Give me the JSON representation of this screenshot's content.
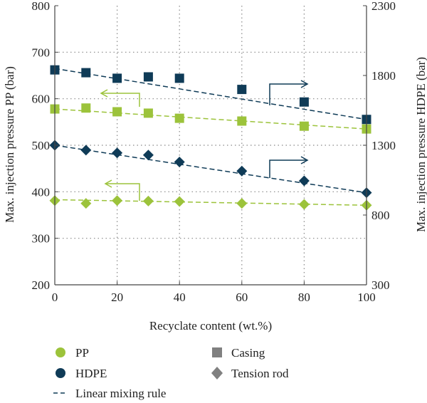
{
  "chart_data": {
    "type": "scatter",
    "x_label": "Recyclate content (wt.%)",
    "y_left_label": "Max. injection pressure PP (bar)",
    "y_right_label": "Max. injection pressure HDPE (bar)",
    "x_range": [
      0,
      100
    ],
    "y_left_range": [
      200,
      800
    ],
    "y_right_range": [
      300,
      2300
    ],
    "x_ticks": [
      0,
      20,
      40,
      60,
      80,
      100
    ],
    "y_left_ticks": [
      200,
      300,
      400,
      500,
      600,
      700,
      800
    ],
    "y_right_ticks": [
      300,
      800,
      1300,
      1800,
      2300
    ],
    "grid": "dotted",
    "colors": {
      "PP": "#9cc33b",
      "HDPE": "#0f3b57",
      "axis": "#444444",
      "grid": "#888888"
    },
    "series": [
      {
        "name": "PP",
        "part": "Casing",
        "axis": "left",
        "marker": "square",
        "x": [
          0,
          10,
          20,
          30,
          40,
          60,
          80,
          100
        ],
        "y": [
          578,
          580,
          572,
          569,
          558,
          552,
          541,
          535
        ],
        "fit": [
          578,
          535
        ]
      },
      {
        "name": "PP",
        "part": "Tension rod",
        "axis": "left",
        "marker": "diamond",
        "x": [
          0,
          10,
          20,
          30,
          40,
          60,
          80,
          100
        ],
        "y": [
          381,
          375,
          381,
          380,
          379,
          375,
          373,
          371
        ],
        "fit": [
          383,
          371
        ]
      },
      {
        "name": "HDPE",
        "part": "Casing",
        "axis": "right",
        "marker": "square",
        "x": [
          0,
          10,
          20,
          30,
          40,
          60,
          80,
          100
        ],
        "y": [
          1840,
          1820,
          1780,
          1790,
          1780,
          1700,
          1610,
          1485
        ],
        "fit": [
          1850,
          1485
        ]
      },
      {
        "name": "HDPE",
        "part": "Tension rod",
        "axis": "right",
        "marker": "diamond",
        "x": [
          0,
          10,
          20,
          30,
          40,
          60,
          80,
          100
        ],
        "y": [
          1300,
          1265,
          1245,
          1230,
          1180,
          1115,
          1045,
          960
        ],
        "fit": [
          1300,
          960
        ]
      }
    ],
    "legend": {
      "items": [
        {
          "label": "PP",
          "symbol": "circle",
          "color": "#9cc33b"
        },
        {
          "label": "HDPE",
          "symbol": "circle",
          "color": "#0f3b57"
        },
        {
          "label": "Linear mixing rule",
          "symbol": "dash",
          "color": "#0f3b57"
        },
        {
          "label": "Casing",
          "symbol": "square",
          "color": "#808080"
        },
        {
          "label": "Tension rod",
          "symbol": "diamond",
          "color": "#808080"
        }
      ]
    }
  }
}
